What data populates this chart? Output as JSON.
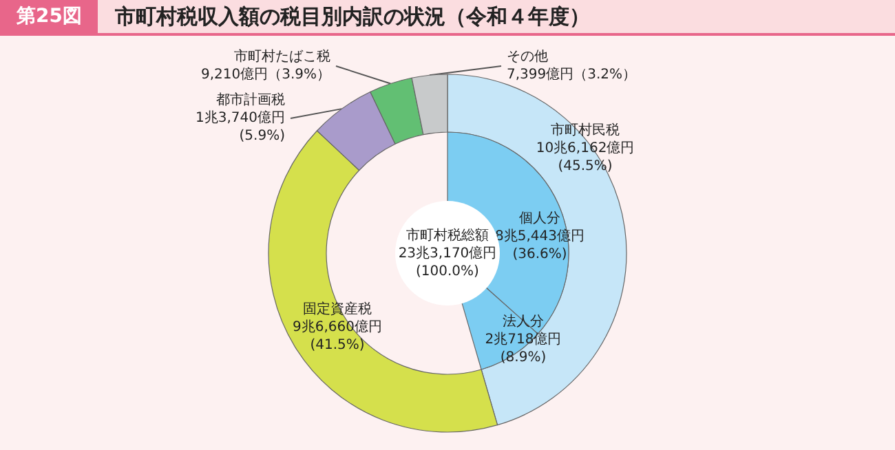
{
  "chart_data": [
    {
      "type": "donut",
      "title": "市町村税収入額の税目別内訳の状況（令和４年度）",
      "legend": false,
      "annotations": [
        "第25図",
        "市町村税総額\n23兆3,170億円\n(100.0%)"
      ],
      "categories": [
        "市町村民税",
        "固定資産税",
        "都市計画税",
        "市町村たばこ税",
        "その他"
      ],
      "values": [
        45.5,
        41.5,
        5.9,
        3.9,
        3.2
      ],
      "colors": [
        "#c6e6f8",
        "#d5e04c",
        "#a99bcb",
        "#62bf73",
        "#c8cacb"
      ],
      "value_labels": [
        "10兆6,162億円\n(45.5%)",
        "9兆6,660億円\n(41.5%)",
        "1兆3,740億円\n(5.9%)",
        "9,210億円（3.9%）",
        "7,399億円（3.2%）"
      ]
    },
    {
      "type": "donut",
      "legend": false,
      "categories": [
        "個人分",
        "法人分"
      ],
      "values": [
        36.6,
        8.9
      ],
      "colors": [
        "#7ccdf2",
        "#7ccdf2"
      ],
      "value_labels": [
        "8兆5,443億円\n(36.6%)",
        "2兆718億円\n(8.9%)"
      ]
    }
  ]
}
